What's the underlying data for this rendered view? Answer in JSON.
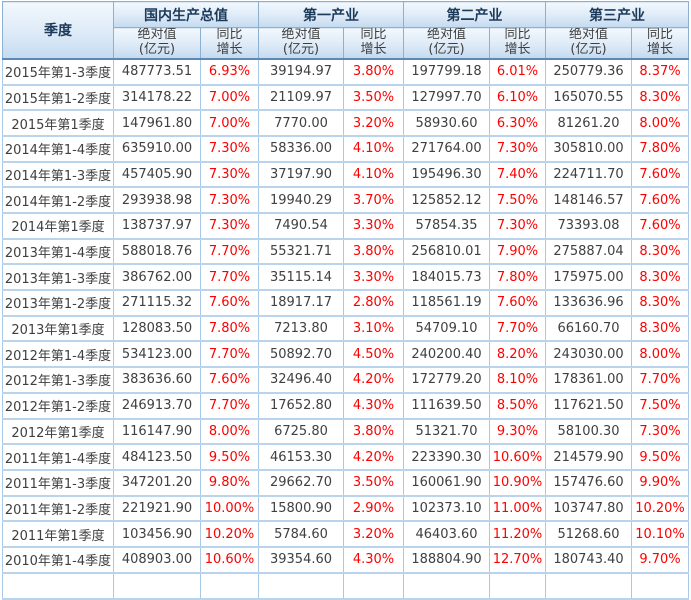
{
  "header": {
    "quarter": "季度",
    "groups": [
      "国内生产总值",
      "第一产业",
      "第二产业",
      "第三产业"
    ],
    "abs_line1": "绝对值",
    "abs_line2": "(亿元)",
    "yoy_line1": "同比",
    "yoy_line2": "增长"
  },
  "colors": {
    "growth_text": "#fe0000",
    "value_text": "#404040",
    "header_text": "#1c3a5a",
    "grid_light": "#aac9e6",
    "grid_row": "#b9d4ec",
    "header_border": "#8db0cf",
    "header_bg_top": "#f2f8fd",
    "header_bg_bottom": "#c4daf0"
  },
  "chart_data": {
    "type": "table",
    "column_groups": [
      "国内生产总值",
      "第一产业",
      "第二产业",
      "第三产业"
    ],
    "columns": [
      "季度",
      "国内生产总值 绝对值(亿元)",
      "国内生产总值 同比增长",
      "第一产业 绝对值(亿元)",
      "第一产业 同比增长",
      "第二产业 绝对值(亿元)",
      "第二产业 同比增长",
      "第三产业 绝对值(亿元)",
      "第三产业 同比增长"
    ],
    "rows": [
      [
        "2015年第1-3季度",
        "487773.51",
        "6.93%",
        "39194.97",
        "3.80%",
        "197799.18",
        "6.01%",
        "250779.36",
        "8.37%"
      ],
      [
        "2015年第1-2季度",
        "314178.22",
        "7.00%",
        "21109.97",
        "3.50%",
        "127997.70",
        "6.10%",
        "165070.55",
        "8.30%"
      ],
      [
        "2015年第1季度",
        "147961.80",
        "7.00%",
        "7770.00",
        "3.20%",
        "58930.60",
        "6.30%",
        "81261.20",
        "8.00%"
      ],
      [
        "2014年第1-4季度",
        "635910.00",
        "7.30%",
        "58336.00",
        "4.10%",
        "271764.00",
        "7.30%",
        "305810.00",
        "7.80%"
      ],
      [
        "2014年第1-3季度",
        "457405.90",
        "7.30%",
        "37197.90",
        "4.10%",
        "195496.30",
        "7.40%",
        "224711.70",
        "7.60%"
      ],
      [
        "2014年第1-2季度",
        "293938.98",
        "7.30%",
        "19940.29",
        "3.70%",
        "125852.12",
        "7.50%",
        "148146.57",
        "7.60%"
      ],
      [
        "2014年第1季度",
        "138737.97",
        "7.30%",
        "7490.54",
        "3.30%",
        "57854.35",
        "7.30%",
        "73393.08",
        "7.60%"
      ],
      [
        "2013年第1-4季度",
        "588018.76",
        "7.70%",
        "55321.71",
        "3.80%",
        "256810.01",
        "7.90%",
        "275887.04",
        "8.30%"
      ],
      [
        "2013年第1-3季度",
        "386762.00",
        "7.70%",
        "35115.14",
        "3.30%",
        "184015.73",
        "7.80%",
        "175975.00",
        "8.30%"
      ],
      [
        "2013年第1-2季度",
        "271115.32",
        "7.60%",
        "18917.17",
        "2.80%",
        "118561.19",
        "7.60%",
        "133636.96",
        "8.30%"
      ],
      [
        "2013年第1季度",
        "128083.50",
        "7.80%",
        "7213.80",
        "3.10%",
        "54709.10",
        "7.70%",
        "66160.70",
        "8.30%"
      ],
      [
        "2012年第1-4季度",
        "534123.00",
        "7.70%",
        "50892.70",
        "4.50%",
        "240200.40",
        "8.20%",
        "243030.00",
        "8.00%"
      ],
      [
        "2012年第1-3季度",
        "383636.60",
        "7.60%",
        "32496.40",
        "4.20%",
        "172779.20",
        "8.10%",
        "178361.00",
        "7.70%"
      ],
      [
        "2012年第1-2季度",
        "246913.70",
        "7.70%",
        "17652.80",
        "4.30%",
        "111639.50",
        "8.50%",
        "117621.50",
        "7.50%"
      ],
      [
        "2012年第1季度",
        "116147.90",
        "8.00%",
        "6725.80",
        "3.80%",
        "51321.70",
        "9.30%",
        "58100.30",
        "7.30%"
      ],
      [
        "2011年第1-4季度",
        "484123.50",
        "9.50%",
        "46153.30",
        "4.20%",
        "223390.30",
        "10.60%",
        "214579.90",
        "9.50%"
      ],
      [
        "2011年第1-3季度",
        "347201.20",
        "9.80%",
        "29662.70",
        "3.50%",
        "160061.90",
        "10.90%",
        "157476.60",
        "9.90%"
      ],
      [
        "2011年第1-2季度",
        "221921.90",
        "10.00%",
        "15800.90",
        "2.90%",
        "102373.10",
        "11.00%",
        "103747.80",
        "10.20%"
      ],
      [
        "2011年第1季度",
        "103456.90",
        "10.20%",
        "5784.60",
        "3.20%",
        "46403.60",
        "11.20%",
        "51268.60",
        "10.10%"
      ],
      [
        "2010年第1-4季度",
        "408903.00",
        "10.60%",
        "39354.60",
        "4.30%",
        "188804.90",
        "12.70%",
        "180743.40",
        "9.70%"
      ]
    ]
  }
}
